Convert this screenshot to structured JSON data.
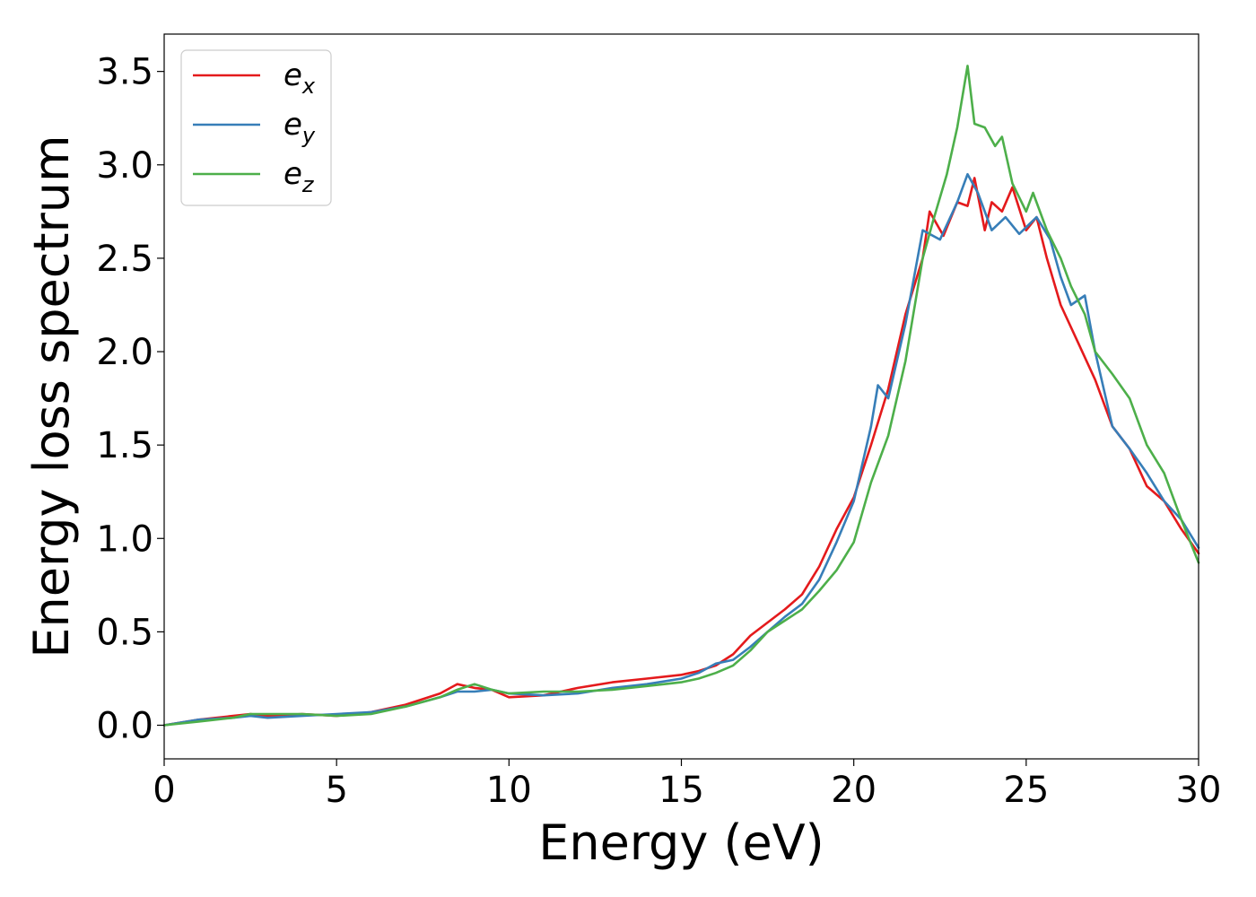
{
  "chart_data": {
    "type": "line",
    "xlabel": "Energy (eV)",
    "ylabel": "Energy loss spectrum",
    "xlim": [
      0,
      30
    ],
    "ylim": [
      -0.18,
      3.7
    ],
    "xticks": [
      0,
      5,
      10,
      15,
      20,
      25,
      30
    ],
    "yticks": [
      0.0,
      0.5,
      1.0,
      1.5,
      2.0,
      2.5,
      3.0,
      3.5
    ],
    "grid": false,
    "legend_position": "top-left",
    "series": [
      {
        "name": "e",
        "subscript": "x",
        "color": "#e41a1c",
        "x": [
          0,
          1,
          2,
          2.5,
          3,
          4,
          5,
          6,
          7,
          8,
          8.5,
          9,
          9.5,
          10,
          11,
          12,
          13,
          14,
          15,
          15.5,
          16,
          16.5,
          17,
          17.5,
          18,
          18.5,
          19,
          19.5,
          20,
          20.5,
          21,
          21.5,
          22,
          22.2,
          22.6,
          23,
          23.3,
          23.5,
          23.8,
          24,
          24.3,
          24.6,
          25,
          25.3,
          25.6,
          26,
          26.5,
          27,
          27.5,
          28,
          28.5,
          29,
          29.5,
          30
        ],
        "y": [
          0.0,
          0.03,
          0.05,
          0.06,
          0.05,
          0.06,
          0.05,
          0.07,
          0.11,
          0.17,
          0.22,
          0.2,
          0.19,
          0.15,
          0.16,
          0.2,
          0.23,
          0.25,
          0.27,
          0.29,
          0.32,
          0.38,
          0.48,
          0.55,
          0.62,
          0.7,
          0.85,
          1.05,
          1.22,
          1.5,
          1.8,
          2.2,
          2.5,
          2.75,
          2.62,
          2.8,
          2.78,
          2.93,
          2.65,
          2.8,
          2.75,
          2.88,
          2.65,
          2.72,
          2.5,
          2.25,
          2.05,
          1.85,
          1.6,
          1.48,
          1.28,
          1.2,
          1.05,
          0.92
        ]
      },
      {
        "name": "e",
        "subscript": "y",
        "color": "#377eb8",
        "x": [
          0,
          1,
          2,
          2.5,
          3,
          4,
          5,
          6,
          7,
          8,
          8.5,
          9,
          9.5,
          10,
          11,
          12,
          13,
          14,
          15,
          15.5,
          16,
          16.5,
          17,
          17.5,
          18,
          18.5,
          19,
          19.5,
          20,
          20.5,
          20.7,
          21,
          21.5,
          22,
          22.5,
          23,
          23.3,
          23.6,
          24,
          24.4,
          24.8,
          25.3,
          25.7,
          26,
          26.3,
          26.7,
          27,
          27.5,
          28,
          28.5,
          29,
          29.5,
          30
        ],
        "y": [
          0.0,
          0.03,
          0.04,
          0.05,
          0.04,
          0.05,
          0.06,
          0.07,
          0.1,
          0.15,
          0.18,
          0.18,
          0.19,
          0.17,
          0.16,
          0.17,
          0.2,
          0.22,
          0.25,
          0.28,
          0.33,
          0.35,
          0.42,
          0.5,
          0.58,
          0.65,
          0.78,
          0.98,
          1.2,
          1.6,
          1.82,
          1.75,
          2.15,
          2.65,
          2.6,
          2.8,
          2.95,
          2.85,
          2.65,
          2.72,
          2.63,
          2.72,
          2.6,
          2.4,
          2.25,
          2.3,
          2.0,
          1.6,
          1.48,
          1.35,
          1.2,
          1.1,
          0.95
        ]
      },
      {
        "name": "e",
        "subscript": "z",
        "color": "#4daf4a",
        "x": [
          0,
          1,
          2,
          2.5,
          3,
          4,
          5,
          6,
          7,
          8,
          8.5,
          9,
          9.5,
          10,
          11,
          12,
          13,
          14,
          15,
          15.5,
          16,
          16.5,
          17,
          17.5,
          18,
          18.5,
          19,
          19.5,
          20,
          20.5,
          21,
          21.5,
          22,
          22.3,
          22.7,
          23,
          23.3,
          23.5,
          23.8,
          24.1,
          24.3,
          24.6,
          25,
          25.2,
          25.6,
          26,
          26.3,
          26.7,
          27,
          27.5,
          28,
          28.5,
          29,
          29.5,
          30
        ],
        "y": [
          0.0,
          0.02,
          0.04,
          0.06,
          0.06,
          0.06,
          0.05,
          0.06,
          0.1,
          0.15,
          0.19,
          0.22,
          0.19,
          0.17,
          0.18,
          0.18,
          0.19,
          0.21,
          0.23,
          0.25,
          0.28,
          0.32,
          0.4,
          0.5,
          0.56,
          0.62,
          0.72,
          0.83,
          0.98,
          1.3,
          1.55,
          1.95,
          2.5,
          2.7,
          2.95,
          3.2,
          3.53,
          3.22,
          3.2,
          3.1,
          3.15,
          2.9,
          2.75,
          2.85,
          2.65,
          2.5,
          2.35,
          2.2,
          2.0,
          1.88,
          1.75,
          1.5,
          1.35,
          1.1,
          0.87
        ]
      }
    ]
  }
}
